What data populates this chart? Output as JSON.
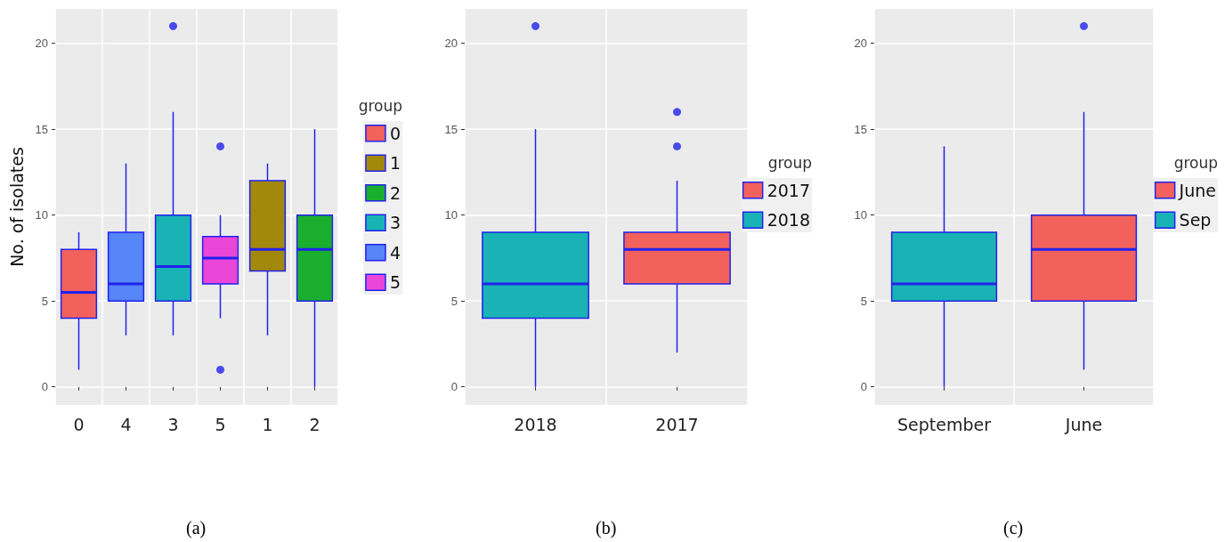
{
  "chart_data": [
    {
      "type": "box",
      "categories": [
        "0",
        "4",
        "3",
        "5",
        "1",
        "2"
      ],
      "ylabel": "No. of isolates",
      "legend_title": "group",
      "legend": "right",
      "grid": true,
      "ylim": [
        -1.05,
        22
      ],
      "yticks": [
        0,
        5,
        10,
        15,
        20
      ],
      "annotations": [
        "(a)"
      ],
      "series": [
        {
          "name": "0",
          "color": "#f2615c",
          "boxes": [
            {
              "low": 1,
              "q1": 4,
              "median": 5.5,
              "q3": 8,
              "high": 9
            },
            null,
            null,
            null,
            null,
            null
          ]
        },
        {
          "name": "1",
          "color": "#a3890b",
          "boxes": [
            null,
            null,
            null,
            null,
            {
              "low": 3,
              "q1": 6.75,
              "median": 8,
              "q3": 12,
              "high": 13
            },
            null
          ]
        },
        {
          "name": "2",
          "color": "#1aaf2f",
          "boxes": [
            null,
            null,
            null,
            null,
            null,
            {
              "low": 0,
              "q1": 5,
              "median": 8,
              "q3": 10,
              "high": 15
            }
          ]
        },
        {
          "name": "3",
          "color": "#19b3b5",
          "boxes": [
            null,
            null,
            {
              "low": 3,
              "q1": 5,
              "median": 7,
              "q3": 10,
              "high": 16,
              "outliers": [
                21
              ]
            },
            null,
            null,
            null
          ]
        },
        {
          "name": "4",
          "color": "#5686f7",
          "boxes": [
            null,
            {
              "low": 3,
              "q1": 5,
              "median": 6,
              "q3": 9,
              "high": 13
            },
            null,
            null,
            null,
            null
          ]
        },
        {
          "name": "5",
          "color": "#ea47d8",
          "boxes": [
            null,
            null,
            null,
            {
              "low": 4,
              "q1": 6,
              "median": 7.5,
              "q3": 8.75,
              "high": 10,
              "outliers": [
                14,
                1
              ]
            },
            null,
            null
          ]
        }
      ]
    },
    {
      "type": "box",
      "categories": [
        "2018",
        "2017"
      ],
      "legend_title": "group",
      "legend": "right",
      "grid": true,
      "ylim": [
        -1.05,
        22
      ],
      "yticks": [
        0,
        5,
        10,
        15,
        20
      ],
      "annotations": [
        "(b)"
      ],
      "series": [
        {
          "name": "2017",
          "color": "#f2615c",
          "boxes": [
            null,
            {
              "low": 2,
              "q1": 6,
              "median": 8,
              "q3": 9,
              "high": 12,
              "outliers": [
                14,
                16
              ]
            }
          ]
        },
        {
          "name": "2018",
          "color": "#19b3b5",
          "boxes": [
            {
              "low": 0,
              "q1": 4,
              "median": 6,
              "q3": 9,
              "high": 15,
              "outliers": [
                21
              ]
            },
            null
          ]
        }
      ]
    },
    {
      "type": "box",
      "categories": [
        "September",
        "June"
      ],
      "legend_title": "group",
      "legend": "right",
      "grid": true,
      "ylim": [
        -1.05,
        22
      ],
      "yticks": [
        0,
        5,
        10,
        15,
        20
      ],
      "annotations": [
        "(c)"
      ],
      "series": [
        {
          "name": "June",
          "color": "#f2615c",
          "boxes": [
            null,
            {
              "low": 1,
              "q1": 5,
              "median": 8,
              "q3": 10,
              "high": 16,
              "outliers": [
                21
              ]
            }
          ]
        },
        {
          "name": "Sep",
          "color": "#19b3b5",
          "boxes": [
            {
              "low": 0,
              "q1": 5,
              "median": 6,
              "q3": 9,
              "high": 14
            },
            null
          ]
        }
      ]
    }
  ]
}
